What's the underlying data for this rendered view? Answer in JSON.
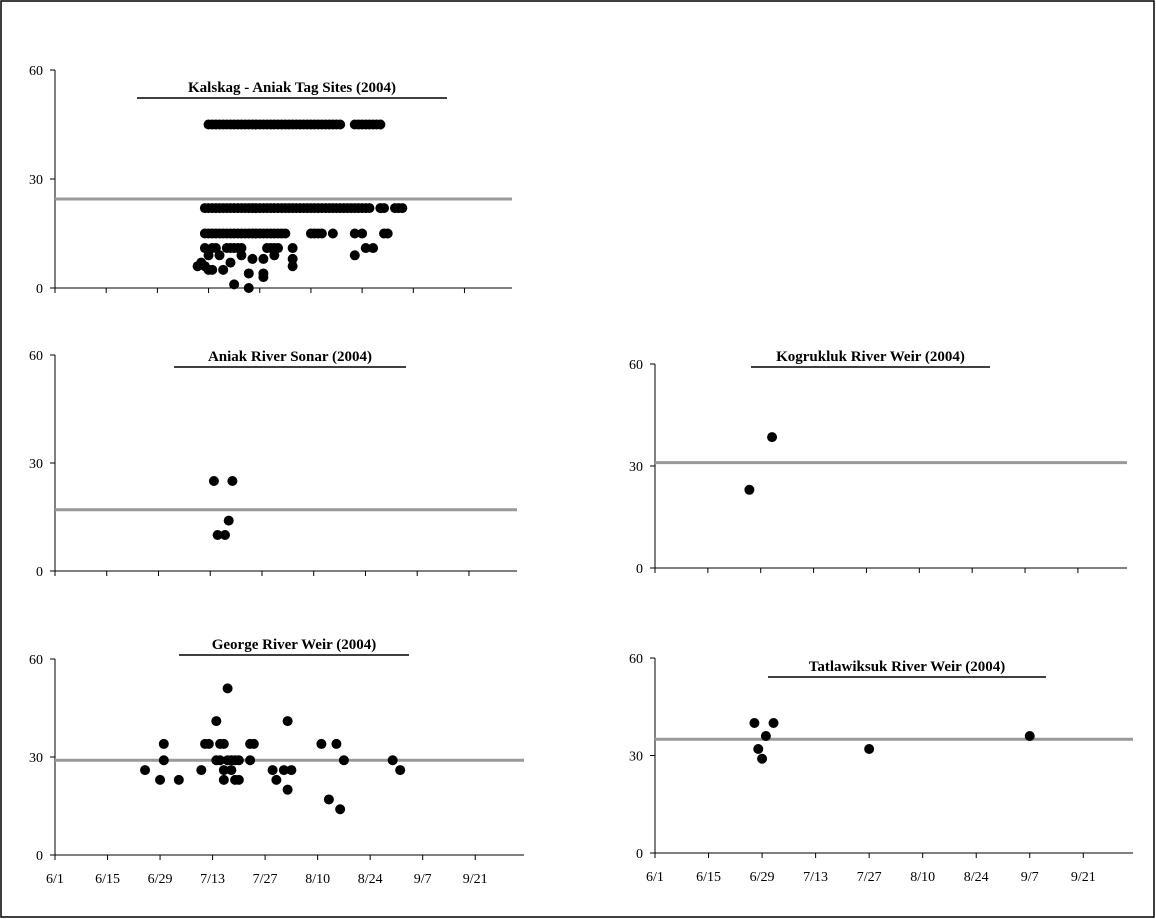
{
  "colors": {
    "points": "#000000",
    "reference_line": "#999999",
    "axis": "#000000",
    "border": "#000000"
  },
  "chart_data": [
    {
      "type": "scatter",
      "title": "Kalskag - Aniak Tag Sites (2004)",
      "x_unit": "date",
      "xlim": [
        "6/1",
        "10/4"
      ],
      "ylim": [
        0,
        60
      ],
      "y_ticks": [
        "0",
        "30",
        "60"
      ],
      "x_tick_labels_shown": false,
      "reference_line_y": 24.5,
      "points": [
        {
          "x": "7/10",
          "y": 6
        },
        {
          "x": "7/11",
          "y": 7
        },
        {
          "x": "7/12",
          "y": 6
        },
        {
          "x": "7/13",
          "y": 5
        },
        {
          "x": "7/14",
          "y": 5
        },
        {
          "x": "7/13",
          "y": 9
        },
        {
          "x": "7/16",
          "y": 9
        },
        {
          "x": "7/19",
          "y": 7
        },
        {
          "x": "7/17",
          "y": 5
        },
        {
          "x": "7/22",
          "y": 9
        },
        {
          "x": "7/25",
          "y": 8
        },
        {
          "x": "7/28",
          "y": 8
        },
        {
          "x": "7/31",
          "y": 9
        },
        {
          "x": "8/5",
          "y": 8
        },
        {
          "x": "7/20",
          "y": 1
        },
        {
          "x": "7/24",
          "y": 4
        },
        {
          "x": "7/28",
          "y": 3
        },
        {
          "x": "8/5",
          "y": 6
        },
        {
          "x": "7/28",
          "y": 4
        },
        {
          "x": "7/24",
          "y": 0
        },
        {
          "x": "7/12",
          "y": 11
        },
        {
          "x": "7/14",
          "y": 11
        },
        {
          "x": "7/15",
          "y": 11
        },
        {
          "x": "7/18",
          "y": 11
        },
        {
          "x": "7/19",
          "y": 11
        },
        {
          "x": "7/20",
          "y": 11
        },
        {
          "x": "7/21",
          "y": 11
        },
        {
          "x": "7/22",
          "y": 11
        },
        {
          "x": "7/29",
          "y": 11
        },
        {
          "x": "7/30",
          "y": 11
        },
        {
          "x": "7/31",
          "y": 11
        },
        {
          "x": "8/1",
          "y": 11
        },
        {
          "x": "8/5",
          "y": 11
        },
        {
          "x": "8/22",
          "y": 9
        },
        {
          "x": "8/25",
          "y": 11
        },
        {
          "x": "8/27",
          "y": 11
        },
        {
          "x": "7/12",
          "y": 15
        },
        {
          "x": "7/13",
          "y": 15
        },
        {
          "x": "7/14",
          "y": 15
        },
        {
          "x": "7/15",
          "y": 15
        },
        {
          "x": "7/16",
          "y": 15
        },
        {
          "x": "7/17",
          "y": 15
        },
        {
          "x": "7/18",
          "y": 15
        },
        {
          "x": "7/19",
          "y": 15
        },
        {
          "x": "7/20",
          "y": 15
        },
        {
          "x": "7/21",
          "y": 15
        },
        {
          "x": "7/22",
          "y": 15
        },
        {
          "x": "7/23",
          "y": 15
        },
        {
          "x": "7/24",
          "y": 15
        },
        {
          "x": "7/25",
          "y": 15
        },
        {
          "x": "7/26",
          "y": 15
        },
        {
          "x": "7/27",
          "y": 15
        },
        {
          "x": "7/28",
          "y": 15
        },
        {
          "x": "7/29",
          "y": 15
        },
        {
          "x": "7/30",
          "y": 15
        },
        {
          "x": "7/31",
          "y": 15
        },
        {
          "x": "8/1",
          "y": 15
        },
        {
          "x": "8/2",
          "y": 15
        },
        {
          "x": "8/3",
          "y": 15
        },
        {
          "x": "8/10",
          "y": 15
        },
        {
          "x": "8/11",
          "y": 15
        },
        {
          "x": "8/12",
          "y": 15
        },
        {
          "x": "8/13",
          "y": 15
        },
        {
          "x": "8/16",
          "y": 15
        },
        {
          "x": "8/22",
          "y": 15
        },
        {
          "x": "8/24",
          "y": 15
        },
        {
          "x": "8/30",
          "y": 15
        },
        {
          "x": "8/31",
          "y": 15
        },
        {
          "x": "7/12",
          "y": 22
        },
        {
          "x": "7/13",
          "y": 22
        },
        {
          "x": "7/14",
          "y": 22
        },
        {
          "x": "7/15",
          "y": 22
        },
        {
          "x": "7/16",
          "y": 22
        },
        {
          "x": "7/17",
          "y": 22
        },
        {
          "x": "7/18",
          "y": 22
        },
        {
          "x": "7/19",
          "y": 22
        },
        {
          "x": "7/20",
          "y": 22
        },
        {
          "x": "7/21",
          "y": 22
        },
        {
          "x": "7/22",
          "y": 22
        },
        {
          "x": "7/23",
          "y": 22
        },
        {
          "x": "7/24",
          "y": 22
        },
        {
          "x": "7/25",
          "y": 22
        },
        {
          "x": "7/26",
          "y": 22
        },
        {
          "x": "7/27",
          "y": 22
        },
        {
          "x": "7/28",
          "y": 22
        },
        {
          "x": "7/29",
          "y": 22
        },
        {
          "x": "7/30",
          "y": 22
        },
        {
          "x": "7/31",
          "y": 22
        },
        {
          "x": "8/1",
          "y": 22
        },
        {
          "x": "8/2",
          "y": 22
        },
        {
          "x": "8/3",
          "y": 22
        },
        {
          "x": "8/4",
          "y": 22
        },
        {
          "x": "8/5",
          "y": 22
        },
        {
          "x": "8/6",
          "y": 22
        },
        {
          "x": "8/7",
          "y": 22
        },
        {
          "x": "8/8",
          "y": 22
        },
        {
          "x": "8/9",
          "y": 22
        },
        {
          "x": "8/10",
          "y": 22
        },
        {
          "x": "8/11",
          "y": 22
        },
        {
          "x": "8/12",
          "y": 22
        },
        {
          "x": "8/13",
          "y": 22
        },
        {
          "x": "8/14",
          "y": 22
        },
        {
          "x": "8/15",
          "y": 22
        },
        {
          "x": "8/16",
          "y": 22
        },
        {
          "x": "8/17",
          "y": 22
        },
        {
          "x": "8/18",
          "y": 22
        },
        {
          "x": "8/19",
          "y": 22
        },
        {
          "x": "8/20",
          "y": 22
        },
        {
          "x": "8/21",
          "y": 22
        },
        {
          "x": "8/22",
          "y": 22
        },
        {
          "x": "8/23",
          "y": 22
        },
        {
          "x": "8/24",
          "y": 22
        },
        {
          "x": "8/25",
          "y": 22
        },
        {
          "x": "8/26",
          "y": 22
        },
        {
          "x": "8/29",
          "y": 22
        },
        {
          "x": "8/30",
          "y": 22
        },
        {
          "x": "9/2",
          "y": 22
        },
        {
          "x": "9/3",
          "y": 22
        },
        {
          "x": "9/4",
          "y": 22
        },
        {
          "x": "7/13",
          "y": 45
        },
        {
          "x": "7/14",
          "y": 45
        },
        {
          "x": "7/15",
          "y": 45
        },
        {
          "x": "7/16",
          "y": 45
        },
        {
          "x": "7/17",
          "y": 45
        },
        {
          "x": "7/18",
          "y": 45
        },
        {
          "x": "7/19",
          "y": 45
        },
        {
          "x": "7/20",
          "y": 45
        },
        {
          "x": "7/21",
          "y": 45
        },
        {
          "x": "7/22",
          "y": 45
        },
        {
          "x": "7/23",
          "y": 45
        },
        {
          "x": "7/24",
          "y": 45
        },
        {
          "x": "7/25",
          "y": 45
        },
        {
          "x": "7/26",
          "y": 45
        },
        {
          "x": "7/27",
          "y": 45
        },
        {
          "x": "7/28",
          "y": 45
        },
        {
          "x": "7/29",
          "y": 45
        },
        {
          "x": "7/30",
          "y": 45
        },
        {
          "x": "7/31",
          "y": 45
        },
        {
          "x": "8/1",
          "y": 45
        },
        {
          "x": "8/2",
          "y": 45
        },
        {
          "x": "8/3",
          "y": 45
        },
        {
          "x": "8/4",
          "y": 45
        },
        {
          "x": "8/5",
          "y": 45
        },
        {
          "x": "8/6",
          "y": 45
        },
        {
          "x": "8/7",
          "y": 45
        },
        {
          "x": "8/8",
          "y": 45
        },
        {
          "x": "8/9",
          "y": 45
        },
        {
          "x": "8/10",
          "y": 45
        },
        {
          "x": "8/11",
          "y": 45
        },
        {
          "x": "8/12",
          "y": 45
        },
        {
          "x": "8/13",
          "y": 45
        },
        {
          "x": "8/14",
          "y": 45
        },
        {
          "x": "8/15",
          "y": 45
        },
        {
          "x": "8/16",
          "y": 45
        },
        {
          "x": "8/17",
          "y": 45
        },
        {
          "x": "8/18",
          "y": 45
        },
        {
          "x": "8/22",
          "y": 45
        },
        {
          "x": "8/23",
          "y": 45
        },
        {
          "x": "8/24",
          "y": 45
        },
        {
          "x": "8/25",
          "y": 45
        },
        {
          "x": "8/26",
          "y": 45
        },
        {
          "x": "8/27",
          "y": 45
        },
        {
          "x": "8/28",
          "y": 45
        },
        {
          "x": "8/29",
          "y": 45
        }
      ]
    },
    {
      "type": "scatter",
      "title": "Aniak River Sonar (2004)",
      "x_unit": "date",
      "xlim": [
        "6/1",
        "10/4"
      ],
      "ylim": [
        0,
        60
      ],
      "y_ticks": [
        "0",
        "30",
        "60"
      ],
      "x_tick_labels_shown": false,
      "reference_line_y": 17,
      "points": [
        {
          "x": "7/14",
          "y": 25
        },
        {
          "x": "7/19",
          "y": 25
        },
        {
          "x": "7/15",
          "y": 10
        },
        {
          "x": "7/17",
          "y": 10
        },
        {
          "x": "7/18",
          "y": 14
        }
      ]
    },
    {
      "type": "scatter",
      "title": "Kogrukluk River Weir (2004)",
      "x_unit": "date",
      "xlim": [
        "6/1",
        "10/4"
      ],
      "ylim": [
        0,
        60
      ],
      "y_ticks": [
        "0",
        "30",
        "60"
      ],
      "x_tick_labels_shown": false,
      "reference_line_y": 31,
      "points": [
        {
          "x": "6/26",
          "y": 23
        },
        {
          "x": "7/2",
          "y": 38.5
        }
      ]
    },
    {
      "type": "scatter",
      "title": "George River Weir (2004)",
      "x_unit": "date",
      "xlim": [
        "6/1",
        "10/4"
      ],
      "ylim": [
        0,
        60
      ],
      "y_ticks": [
        "0",
        "30",
        "60"
      ],
      "x_ticks": [
        "6/1",
        "6/15",
        "6/29",
        "7/13",
        "7/27",
        "8/10",
        "8/24",
        "9/7",
        "9/21"
      ],
      "reference_line_y": 29,
      "points": [
        {
          "x": "6/25",
          "y": 26
        },
        {
          "x": "6/29",
          "y": 23
        },
        {
          "x": "6/30",
          "y": 29
        },
        {
          "x": "6/30",
          "y": 34
        },
        {
          "x": "7/4",
          "y": 23
        },
        {
          "x": "7/10",
          "y": 26
        },
        {
          "x": "7/11",
          "y": 34
        },
        {
          "x": "7/12",
          "y": 34
        },
        {
          "x": "7/14",
          "y": 29
        },
        {
          "x": "7/14",
          "y": 41
        },
        {
          "x": "7/15",
          "y": 29
        },
        {
          "x": "7/15",
          "y": 34
        },
        {
          "x": "7/16",
          "y": 23
        },
        {
          "x": "7/16",
          "y": 26
        },
        {
          "x": "7/16",
          "y": 34
        },
        {
          "x": "7/17",
          "y": 29
        },
        {
          "x": "7/17",
          "y": 51
        },
        {
          "x": "7/18",
          "y": 26
        },
        {
          "x": "7/18",
          "y": 29
        },
        {
          "x": "7/19",
          "y": 23
        },
        {
          "x": "7/19",
          "y": 29
        },
        {
          "x": "7/20",
          "y": 23
        },
        {
          "x": "7/20",
          "y": 29
        },
        {
          "x": "7/23",
          "y": 29
        },
        {
          "x": "7/23",
          "y": 34
        },
        {
          "x": "7/24",
          "y": 34
        },
        {
          "x": "7/29",
          "y": 26
        },
        {
          "x": "7/30",
          "y": 23
        },
        {
          "x": "8/1",
          "y": 26
        },
        {
          "x": "8/2",
          "y": 20
        },
        {
          "x": "8/2",
          "y": 41
        },
        {
          "x": "8/3",
          "y": 26
        },
        {
          "x": "8/11",
          "y": 34
        },
        {
          "x": "8/13",
          "y": 17
        },
        {
          "x": "8/15",
          "y": 34
        },
        {
          "x": "8/16",
          "y": 14
        },
        {
          "x": "8/17",
          "y": 29
        },
        {
          "x": "8/30",
          "y": 29
        },
        {
          "x": "9/1",
          "y": 26
        }
      ]
    },
    {
      "type": "scatter",
      "title": "Tatlawiksuk River Weir (2004)",
      "x_unit": "date",
      "xlim": [
        "6/1",
        "10/4"
      ],
      "ylim": [
        0,
        60
      ],
      "y_ticks": [
        "0",
        "30",
        "60"
      ],
      "x_ticks": [
        "6/1",
        "6/15",
        "6/29",
        "7/13",
        "7/27",
        "8/10",
        "8/24",
        "9/7",
        "9/21"
      ],
      "reference_line_y": 35,
      "points": [
        {
          "x": "6/27",
          "y": 40
        },
        {
          "x": "6/28",
          "y": 32
        },
        {
          "x": "6/29",
          "y": 29
        },
        {
          "x": "6/30",
          "y": 36
        },
        {
          "x": "7/2",
          "y": 40
        },
        {
          "x": "7/27",
          "y": 32
        },
        {
          "x": "9/7",
          "y": 36
        }
      ]
    }
  ]
}
